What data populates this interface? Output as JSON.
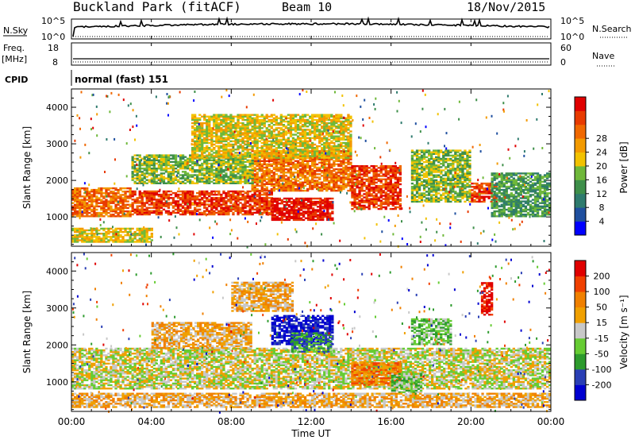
{
  "header": {
    "site_title": "Buckland Park (fitACF)",
    "beam": "Beam 10",
    "date": "18/Nov/2015"
  },
  "status": {
    "nsky_label": "N.Sky",
    "nsky_ticks": [
      "10^5",
      "10^0"
    ],
    "nsearch_label": "N.Search",
    "nsearch_ticks": [
      "10^5",
      "10^0"
    ],
    "freq_label": "Freq.",
    "freq_unit": "[MHz]",
    "freq_ticks": [
      "18",
      "8"
    ],
    "nave_label": "Nave",
    "nave_ticks": [
      "60",
      "0"
    ],
    "cpid_label": "CPID",
    "cpid_value": "normal (fast) 151"
  },
  "chart_data": [
    {
      "type": "heatmap",
      "name": "power",
      "ylabel": "Slant Range [km]",
      "yticks": [
        1000,
        2000,
        3000,
        4000
      ],
      "ylim": [
        200,
        4500
      ],
      "xlim": [
        0,
        24
      ],
      "colorbar": {
        "label": "Power [dB]",
        "ticks": [
          "4",
          "8",
          "12",
          "16",
          "20",
          "24",
          "28"
        ],
        "colors": [
          "#0000ff",
          "#1f4f9f",
          "#2e7b6e",
          "#3e8f4a",
          "#6fb83a",
          "#f2c200",
          "#f39a00",
          "#f06800",
          "#e83a00",
          "#e00000"
        ]
      },
      "echo_bands": [
        {
          "t0": 0,
          "t1": 3,
          "r0": 1000,
          "r1": 1800,
          "level": 7
        },
        {
          "t0": 3,
          "t1": 10,
          "r0": 1050,
          "r1": 1700,
          "level": 8
        },
        {
          "t0": 10,
          "t1": 13,
          "r0": 900,
          "r1": 1500,
          "level": 9
        },
        {
          "t0": 9,
          "t1": 14,
          "r0": 1700,
          "r1": 2800,
          "level": 7
        },
        {
          "t0": 14,
          "t1": 16.5,
          "r0": 1200,
          "r1": 2400,
          "level": 8
        },
        {
          "t0": 3,
          "t1": 9,
          "r0": 1900,
          "r1": 2700,
          "level": 4
        },
        {
          "t0": 17,
          "t1": 20,
          "r0": 1400,
          "r1": 2800,
          "level": 4
        },
        {
          "t0": 20,
          "t1": 21.3,
          "r0": 1400,
          "r1": 1900,
          "level": 8
        },
        {
          "t0": 0,
          "t1": 4,
          "r0": 300,
          "r1": 700,
          "level": 5
        },
        {
          "t0": 6,
          "t1": 14,
          "r0": 2600,
          "r1": 3800,
          "level": 5
        },
        {
          "t0": 21,
          "t1": 24,
          "r0": 1000,
          "r1": 2200,
          "level": 3
        }
      ]
    },
    {
      "type": "heatmap",
      "name": "velocity",
      "ylabel": "Slant Range [km]",
      "yticks": [
        1000,
        2000,
        3000,
        4000
      ],
      "ylim": [
        200,
        4500
      ],
      "xlim": [
        0,
        24
      ],
      "xticks": [
        "00:00",
        "04:00",
        "08:00",
        "12:00",
        "16:00",
        "20:00",
        "00:00"
      ],
      "xlabel": "Time UT",
      "colorbar": {
        "label": "Velocity [m s⁻¹]",
        "ticks": [
          "200",
          "100",
          "50",
          "15",
          "-15",
          "-50",
          "-100",
          "-200"
        ],
        "colors": [
          "#0000d0",
          "#2a3fb5",
          "#2d9b2d",
          "#66cc33",
          "#c8c8c8",
          "#f0a000",
          "#f08000",
          "#f04000",
          "#e00000"
        ]
      },
      "echo_bands": [
        {
          "t0": 0,
          "t1": 24,
          "r0": 800,
          "r1": 1900,
          "level": 4
        },
        {
          "t0": 4,
          "t1": 9,
          "r0": 1900,
          "r1": 2600,
          "level": 5
        },
        {
          "t0": 10,
          "t1": 13,
          "r0": 2000,
          "r1": 2800,
          "level": 0
        },
        {
          "t0": 11,
          "t1": 13,
          "r0": 1800,
          "r1": 2300,
          "level": 2
        },
        {
          "t0": 14,
          "t1": 16.5,
          "r0": 900,
          "r1": 1500,
          "level": 6
        },
        {
          "t0": 16,
          "t1": 17.5,
          "r0": 700,
          "r1": 1200,
          "level": 3
        },
        {
          "t0": 17,
          "t1": 19,
          "r0": 2000,
          "r1": 2700,
          "level": 3
        },
        {
          "t0": 8,
          "t1": 11,
          "r0": 2900,
          "r1": 3700,
          "level": 5
        },
        {
          "t0": 20.5,
          "t1": 21,
          "r0": 2800,
          "r1": 3700,
          "level": 8
        },
        {
          "t0": 0,
          "t1": 24,
          "r0": 300,
          "r1": 700,
          "level": 5
        }
      ]
    }
  ]
}
